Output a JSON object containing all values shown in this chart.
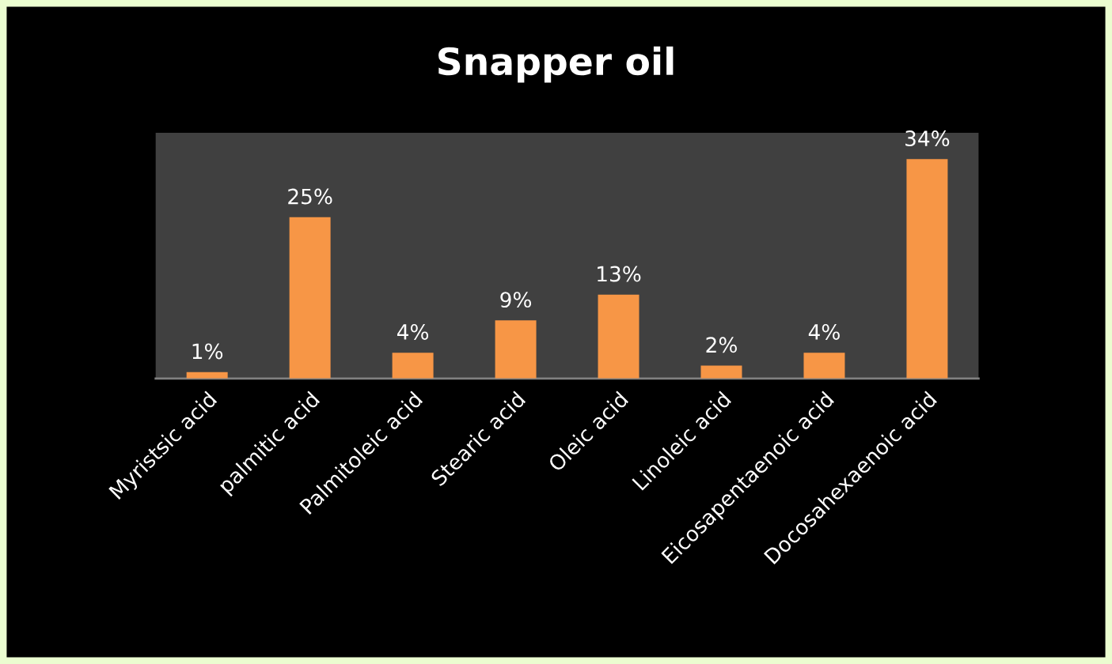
{
  "chart_data": {
    "type": "bar",
    "title": "Snapper oil",
    "categories": [
      "Myristsic acid",
      "palmitic acid",
      "Palmitoleic acid",
      "Stearic acid",
      "Oleic acid",
      "Linoleic acid",
      "Eicosapentaenoic acid",
      "Docosahexaenoic acid"
    ],
    "values": [
      1,
      25,
      4,
      9,
      13,
      2,
      4,
      34
    ],
    "value_labels": [
      "1%",
      "25%",
      "4%",
      "9%",
      "13%",
      "2%",
      "4%",
      "34%"
    ],
    "color": "#f79646",
    "grid": false,
    "legend": false
  }
}
